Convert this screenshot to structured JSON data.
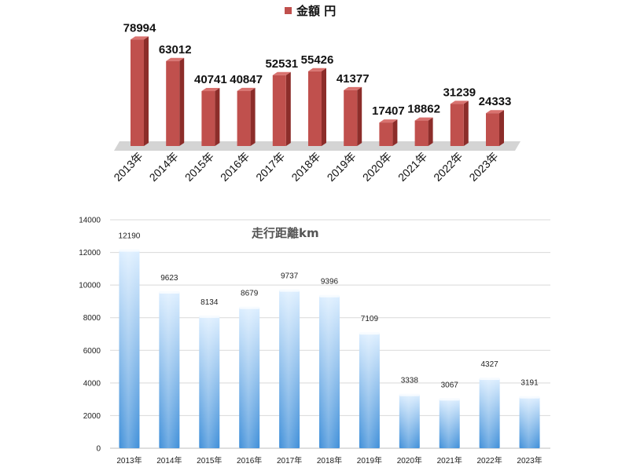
{
  "chart_data": [
    {
      "type": "bar",
      "legend": {
        "label": "金額 円",
        "position": "top",
        "color": "#c0504d"
      },
      "categories": [
        "2013年",
        "2014年",
        "2015年",
        "2016年",
        "2017年",
        "2018年",
        "2019年",
        "2020年",
        "2021年",
        "2022年",
        "2023年"
      ],
      "series": [
        {
          "name": "金額 円",
          "values": [
            78994,
            63012,
            40741,
            40847,
            52531,
            55426,
            41377,
            17407,
            18862,
            31239,
            24333
          ]
        }
      ],
      "ylim": [
        0,
        85000
      ],
      "grid": false,
      "style": "3d",
      "colors": {
        "bar": "#c0504d",
        "bar_side": "#8c2d2a",
        "floor": "#d4d4d4"
      }
    },
    {
      "type": "bar",
      "title": "走行距離km",
      "categories": [
        "2013年",
        "2014年",
        "2015年",
        "2016年",
        "2017年",
        "2018年",
        "2019年",
        "2020年",
        "2021年",
        "2022年",
        "2023年"
      ],
      "series": [
        {
          "name": "",
          "values": [
            12190,
            9623,
            8134,
            8679,
            9737,
            9396,
            7109,
            3338,
            3067,
            4327,
            3191
          ]
        }
      ],
      "ylim": [
        0,
        14000
      ],
      "yticks": [
        0,
        2000,
        4000,
        6000,
        8000,
        10000,
        12000,
        14000
      ],
      "grid": true,
      "colors": {
        "bar_top": "#dceeff",
        "bar_bottom": "#3f8fd9",
        "grid": "#d9d9d9"
      }
    }
  ]
}
